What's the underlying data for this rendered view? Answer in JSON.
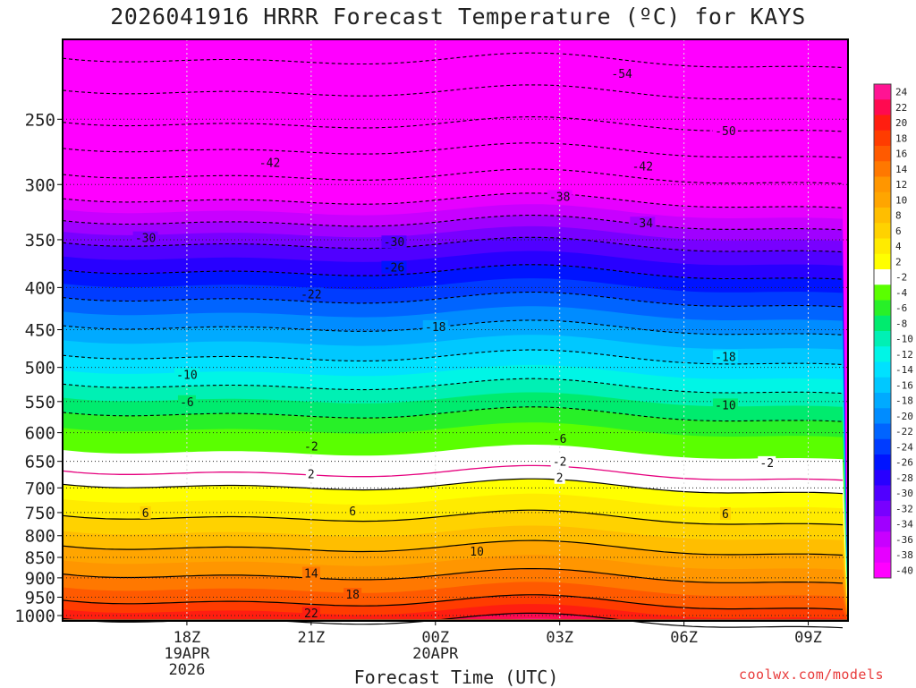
{
  "chart_data": {
    "type": "heatmap",
    "title": "2026041916 HRRR Forecast Temperature (ºC) for KAYS",
    "xlabel": "Forecast Time (UTC)",
    "ylabel": "",
    "y_scale": "log",
    "ylim": [
      1015,
      200
    ],
    "y_ticks": [
      250,
      300,
      350,
      400,
      450,
      500,
      550,
      600,
      650,
      700,
      750,
      800,
      850,
      900,
      950,
      1000
    ],
    "x_ticks": [
      {
        "hour": 18,
        "label": "18Z",
        "label2": "19APR",
        "label3": "2026"
      },
      {
        "hour": 21,
        "label": "21Z"
      },
      {
        "hour": 24,
        "label": "00Z",
        "label2": "20APR"
      },
      {
        "hour": 27,
        "label": "03Z"
      },
      {
        "hour": 30,
        "label": "06Z"
      },
      {
        "hour": 33,
        "label": "09Z"
      }
    ],
    "xlim": [
      15,
      33.96
    ],
    "temperature_profile": {
      "pressure": [
        200,
        250,
        300,
        350,
        400,
        450,
        500,
        550,
        600,
        650,
        700,
        750,
        800,
        850,
        900,
        950,
        1000,
        1015
      ],
      "temperature": [
        -60,
        -50,
        -40,
        -30,
        -23,
        -17,
        -12,
        -7,
        -3,
        -1,
        3,
        6,
        9,
        12,
        15,
        18,
        22,
        23
      ]
    },
    "contour_labels": [
      {
        "value": "-54",
        "time": "04:30Z",
        "pressure": 220
      },
      {
        "value": "-50",
        "time": "07:00Z",
        "pressure": 258
      },
      {
        "value": "-42",
        "time": "20:00Z",
        "pressure": 282
      },
      {
        "value": "-42",
        "time": "05:00Z",
        "pressure": 285
      },
      {
        "value": "-38",
        "time": "03:00Z",
        "pressure": 310
      },
      {
        "value": "-34",
        "time": "05:00Z",
        "pressure": 334
      },
      {
        "value": "-30",
        "time": "17:00Z",
        "pressure": 348
      },
      {
        "value": "-30",
        "time": "23:00Z",
        "pressure": 352
      },
      {
        "value": "-26",
        "time": "23:00Z",
        "pressure": 378
      },
      {
        "value": "-22",
        "time": "21:00Z",
        "pressure": 407
      },
      {
        "value": "-18",
        "time": "00:00Z",
        "pressure": 446
      },
      {
        "value": "-18",
        "time": "07:00Z",
        "pressure": 485
      },
      {
        "value": "-10",
        "time": "18:00Z",
        "pressure": 510
      },
      {
        "value": "-10",
        "time": "07:00Z",
        "pressure": 555
      },
      {
        "value": "-6",
        "time": "18:00Z",
        "pressure": 550
      },
      {
        "value": "-6",
        "time": "03:00Z",
        "pressure": 610
      },
      {
        "value": "-2",
        "time": "21:00Z",
        "pressure": 623
      },
      {
        "value": "-2",
        "time": "03:00Z",
        "pressure": 650
      },
      {
        "value": "-2",
        "time": "08:00Z",
        "pressure": 652
      },
      {
        "value": "2",
        "time": "21:00Z",
        "pressure": 673
      },
      {
        "value": "2",
        "time": "03:00Z",
        "pressure": 680
      },
      {
        "value": "6",
        "time": "17:00Z",
        "pressure": 750
      },
      {
        "value": "6",
        "time": "22:00Z",
        "pressure": 746
      },
      {
        "value": "6",
        "time": "07:00Z",
        "pressure": 752
      },
      {
        "value": "10",
        "time": "01:00Z",
        "pressure": 835
      },
      {
        "value": "14",
        "time": "21:00Z",
        "pressure": 888
      },
      {
        "value": "18",
        "time": "22:00Z",
        "pressure": 942
      },
      {
        "value": "22",
        "time": "21:00Z",
        "pressure": 993
      }
    ],
    "colorbar": {
      "labels": [
        "24",
        "22",
        "20",
        "18",
        "16",
        "14",
        "12",
        "10",
        "8",
        "6",
        "4",
        "2",
        "-2",
        "-4",
        "-6",
        "-8",
        "-10",
        "-12",
        "-14",
        "-16",
        "-18",
        "-20",
        "-22",
        "-24",
        "-26",
        "-28",
        "-30",
        "-32",
        "-34",
        "-36",
        "-38",
        "-40"
      ],
      "colors": [
        "#ff1493",
        "#ff0a50",
        "#ff1e10",
        "#ff3c00",
        "#ff5a00",
        "#ff7800",
        "#ff9600",
        "#ffa500",
        "#ffbe00",
        "#ffd200",
        "#ffeb00",
        "#ffff00",
        "#ffffff",
        "#5aff00",
        "#28f028",
        "#00eb6e",
        "#00f0b4",
        "#00f5e6",
        "#00e1ff",
        "#00c8ff",
        "#00aaff",
        "#008cff",
        "#0064ff",
        "#003cff",
        "#0014ff",
        "#2800ff",
        "#5000ff",
        "#7800ff",
        "#a000ff",
        "#c800ff",
        "#e600ff",
        "#ff00ff"
      ]
    },
    "ground_color": "#a0522d",
    "credit": "coolwx.com/models"
  }
}
